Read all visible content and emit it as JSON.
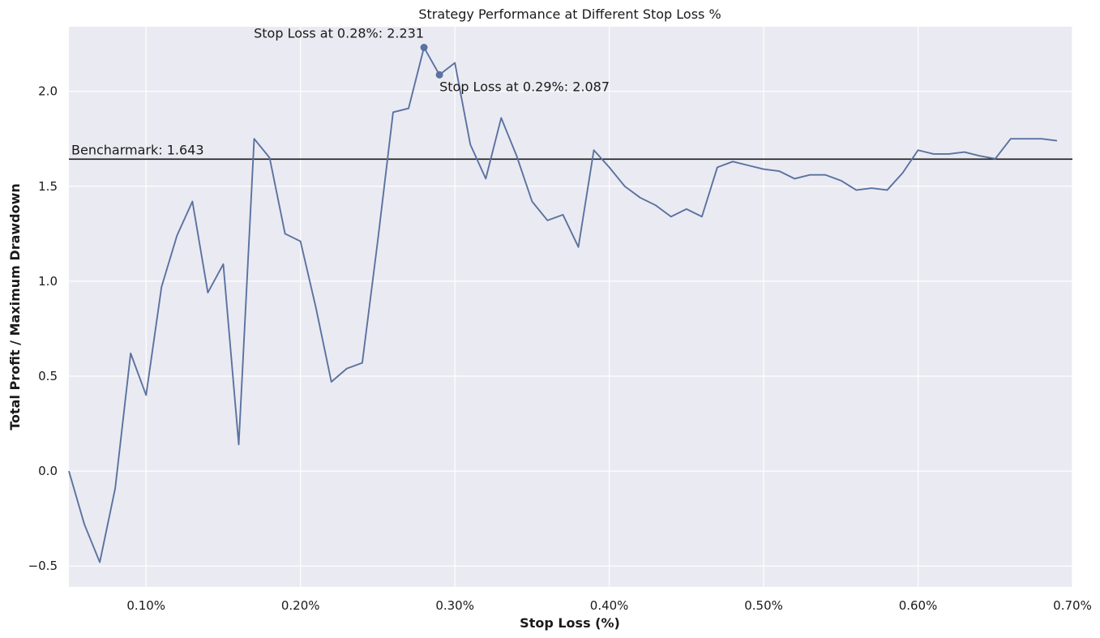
{
  "chart_data": {
    "type": "line",
    "title": "Strategy Performance at Different Stop Loss %",
    "xlabel": "Stop Loss (%)",
    "ylabel": "Total Profit / Maximum Drawdown",
    "xlim": [
      0.05,
      0.7
    ],
    "ylim": [
      -0.61,
      2.34
    ],
    "x_ticks": [
      0.1,
      0.2,
      0.3,
      0.4,
      0.5,
      0.6,
      0.7
    ],
    "x_tick_labels": [
      "0.10%",
      "0.20%",
      "0.30%",
      "0.40%",
      "0.50%",
      "0.60%",
      "0.70%"
    ],
    "y_ticks": [
      -0.5,
      0.0,
      0.5,
      1.0,
      1.5,
      2.0
    ],
    "y_tick_labels": [
      "−0.5",
      "0.0",
      "0.5",
      "1.0",
      "1.5",
      "2.0"
    ],
    "grid": true,
    "colors": {
      "line": "#5a72a0",
      "background": "#eaeaf2",
      "grid": "#ffffff",
      "benchmark": "#1a1a1a"
    },
    "series": [
      {
        "x": [
          0.05,
          0.06,
          0.07,
          0.08,
          0.09,
          0.1,
          0.11,
          0.12,
          0.13,
          0.14,
          0.15,
          0.16,
          0.17,
          0.18,
          0.19,
          0.2,
          0.21,
          0.22,
          0.23,
          0.24,
          0.25,
          0.26,
          0.27,
          0.28,
          0.29,
          0.3,
          0.31,
          0.32,
          0.33,
          0.34,
          0.35,
          0.36,
          0.37,
          0.38,
          0.39,
          0.4,
          0.41,
          0.42,
          0.43,
          0.44,
          0.45,
          0.46,
          0.47,
          0.48,
          0.49,
          0.5,
          0.51,
          0.52,
          0.53,
          0.54,
          0.55,
          0.56,
          0.57,
          0.58,
          0.59,
          0.6,
          0.61,
          0.62,
          0.63,
          0.64,
          0.65,
          0.66,
          0.67,
          0.68,
          0.69
        ],
        "values": [
          0.0,
          -0.28,
          -0.48,
          -0.09,
          0.62,
          0.4,
          0.97,
          1.24,
          1.42,
          0.94,
          1.09,
          0.14,
          1.75,
          1.65,
          1.25,
          1.21,
          0.86,
          0.47,
          0.54,
          0.57,
          1.21,
          1.89,
          1.91,
          2.231,
          2.087,
          2.15,
          1.72,
          1.54,
          1.86,
          1.66,
          1.42,
          1.32,
          1.35,
          1.18,
          1.69,
          1.6,
          1.5,
          1.44,
          1.4,
          1.34,
          1.38,
          1.34,
          1.6,
          1.63,
          1.61,
          1.59,
          1.58,
          1.54,
          1.56,
          1.56,
          1.53,
          1.48,
          1.49,
          1.48,
          1.57,
          1.69,
          1.67,
          1.67,
          1.68,
          1.66,
          1.645,
          1.75,
          1.75,
          1.75,
          1.74
        ]
      }
    ],
    "benchmark": {
      "value": 1.643,
      "label": "Bencharmark: 1.643"
    },
    "annotations": [
      {
        "x": 0.28,
        "y": 2.231,
        "label": "Stop Loss at 0.28%: 2.231",
        "anchor": "end",
        "dx": 0,
        "dy": -12
      },
      {
        "x": 0.29,
        "y": 2.087,
        "label": "Stop Loss at 0.29%: 2.087",
        "anchor": "start",
        "dx": 0,
        "dy": 20
      }
    ]
  }
}
